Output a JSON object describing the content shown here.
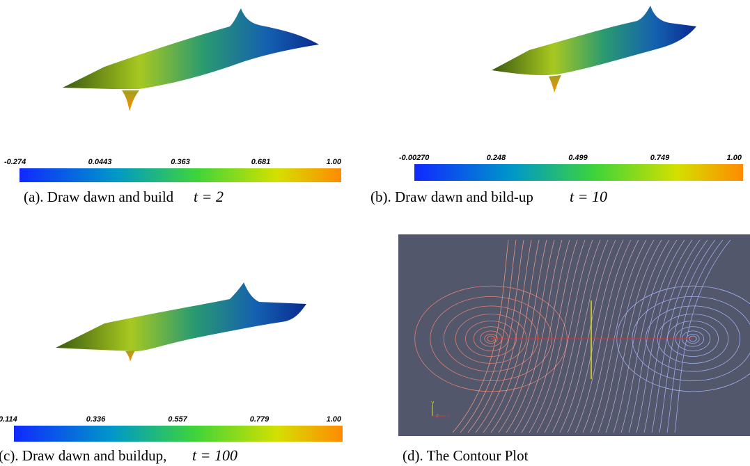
{
  "panels": [
    {
      "caption": "(a). Draw dawn and build",
      "math": "t = 2",
      "colorbar": [
        "-0.274",
        "0.0443",
        "0.363",
        "0.681",
        "1.00"
      ]
    },
    {
      "caption": "(b). Draw dawn and bild-up",
      "math": "t = 10",
      "colorbar": [
        "-0.00270",
        "0.248",
        "0.499",
        "0.749",
        "1.00"
      ]
    },
    {
      "caption": "(c). Draw dawn and buildup,",
      "math": "t = 100",
      "colorbar": [
        "0.114",
        "0.336",
        "0.557",
        "0.779",
        "1.00"
      ]
    },
    {
      "caption": "(d). The Contour Plot",
      "axes": [
        "Y",
        "Z",
        "X"
      ]
    }
  ]
}
